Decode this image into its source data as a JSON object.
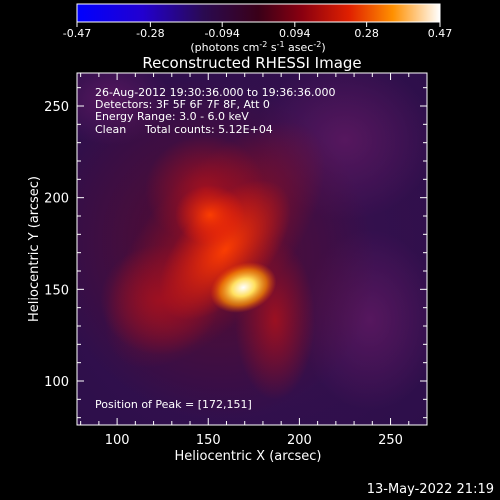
{
  "chart_data": {
    "type": "heatmap",
    "title": "Reconstructed RHESSI Image",
    "xlabel": "Heliocentric X (arcsec)",
    "ylabel": "Heliocentric Y (arcsec)",
    "xlim": [
      78,
      270
    ],
    "ylim": [
      76,
      268
    ],
    "x_ticks": [
      100,
      150,
      200,
      250
    ],
    "y_ticks": [
      100,
      150,
      200,
      250
    ],
    "colorbar": {
      "label_prefix": "(photons cm",
      "label_exp1": "-2",
      "label_mid1": " s",
      "label_exp2": "-1",
      "label_mid2": " asec",
      "label_exp3": "-2",
      "label_suffix": ")",
      "range": [
        -0.47,
        0.47
      ],
      "ticks": [
        "-0.47",
        "-0.28",
        "-0.094",
        "0.094",
        "0.28",
        "0.47"
      ]
    },
    "annotations": {
      "time_range": "26-Aug-2012 19:30:36.000 to 19:36:36.000",
      "detectors": "Detectors: 3F 5F 6F 7F 8F, Att 0",
      "energy": "Energy Range: 3.0 - 6.0 keV",
      "clean": "Clean",
      "total_counts": "Total counts: 5.12E+04",
      "peak_position": "Position of Peak = [172,151]"
    },
    "peak": {
      "x": 172,
      "y": 151
    },
    "footer_date": "13-May-2022 21:19"
  }
}
